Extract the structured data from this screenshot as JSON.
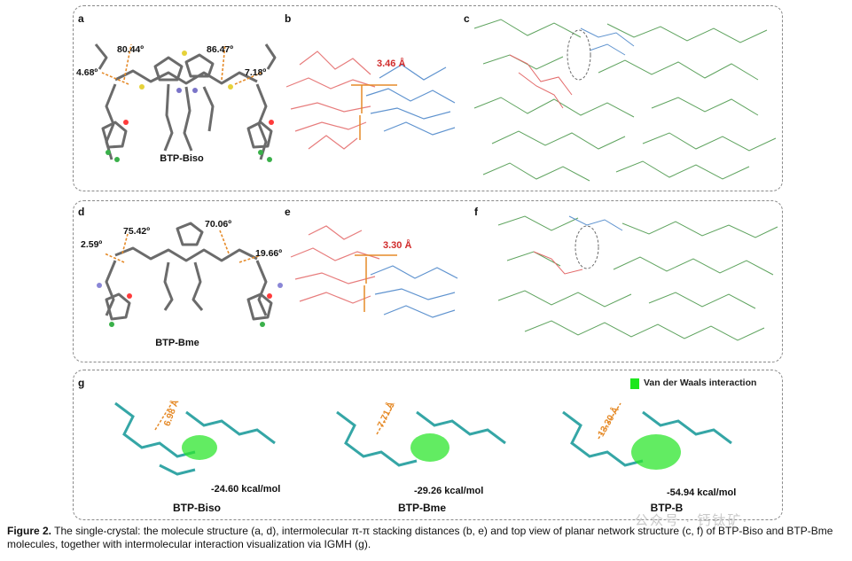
{
  "panels": {
    "a": {
      "label": "a",
      "molecule": "BTP-Biso",
      "angles": [
        "80.44º",
        "86.47º",
        "4.68º",
        "7.18º"
      ]
    },
    "b": {
      "label": "b",
      "distance": "3.46 Å"
    },
    "c": {
      "label": "c"
    },
    "d": {
      "label": "d",
      "molecule": "BTP-Bme",
      "angles": [
        "75.42º",
        "70.06º",
        "2.59º",
        "19.66º"
      ]
    },
    "e": {
      "label": "e",
      "distance": "3.30 Å"
    },
    "f": {
      "label": "f"
    },
    "g": {
      "label": "g",
      "legend": "Van der Waals interaction",
      "items": [
        {
          "name": "BTP-Biso",
          "distance": "6.98 Å",
          "energy": "-24.60 kcal/mol"
        },
        {
          "name": "BTP-Bme",
          "distance": "7.71 Å",
          "energy": "-29.26 kcal/mol"
        },
        {
          "name": "BTP-B",
          "distance": "13.30 Å",
          "energy": "-54.94 kcal/mol"
        }
      ]
    }
  },
  "caption": {
    "lead": "Figure 2.",
    "text": " The single-crystal: the molecule structure (a, d), intermolecular π-π stacking distances (b, e) and top view of planar network structure (c, f) of BTP-Biso and BTP-Bme molecules, together with intermolecular interaction visualization via IGMH (g)."
  },
  "watermark": "公众号 · 钙钛矿·"
}
